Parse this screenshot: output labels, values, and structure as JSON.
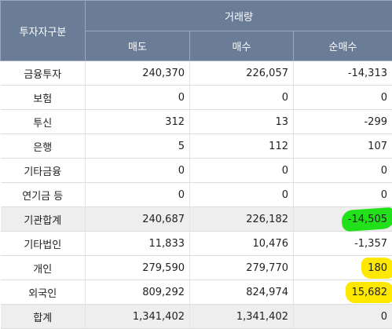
{
  "header": {
    "group_label": "투자자구분",
    "volume_label": "거래량",
    "col_sell": "매도",
    "col_buy": "매수",
    "col_net": "순매수"
  },
  "rows": [
    {
      "name": "금융투자",
      "sell": "240,370",
      "buy": "226,057",
      "net": "-14,313"
    },
    {
      "name": "보험",
      "sell": "0",
      "buy": "0",
      "net": "0"
    },
    {
      "name": "투신",
      "sell": "312",
      "buy": "13",
      "net": "-299"
    },
    {
      "name": "은행",
      "sell": "5",
      "buy": "112",
      "net": "107"
    },
    {
      "name": "기타금융",
      "sell": "0",
      "buy": "0",
      "net": "0"
    },
    {
      "name": "연기금 등",
      "sell": "0",
      "buy": "0",
      "net": "0"
    },
    {
      "name": "기관합계",
      "sell": "240,687",
      "buy": "226,182",
      "net": "-14,505"
    },
    {
      "name": "기타법인",
      "sell": "11,833",
      "buy": "10,476",
      "net": "-1,357"
    },
    {
      "name": "개인",
      "sell": "279,590",
      "buy": "279,770",
      "net": "180"
    },
    {
      "name": "외국인",
      "sell": "809,292",
      "buy": "824,974",
      "net": "15,682"
    },
    {
      "name": "합계",
      "sell": "1,341,402",
      "buy": "1,341,402",
      "net": "0"
    }
  ],
  "colors": {
    "header_bg": "#6b7c97",
    "subtotal_bg": "#eeeeee",
    "highlight_green": "#22e01a",
    "highlight_yellow": "#ffe800"
  }
}
